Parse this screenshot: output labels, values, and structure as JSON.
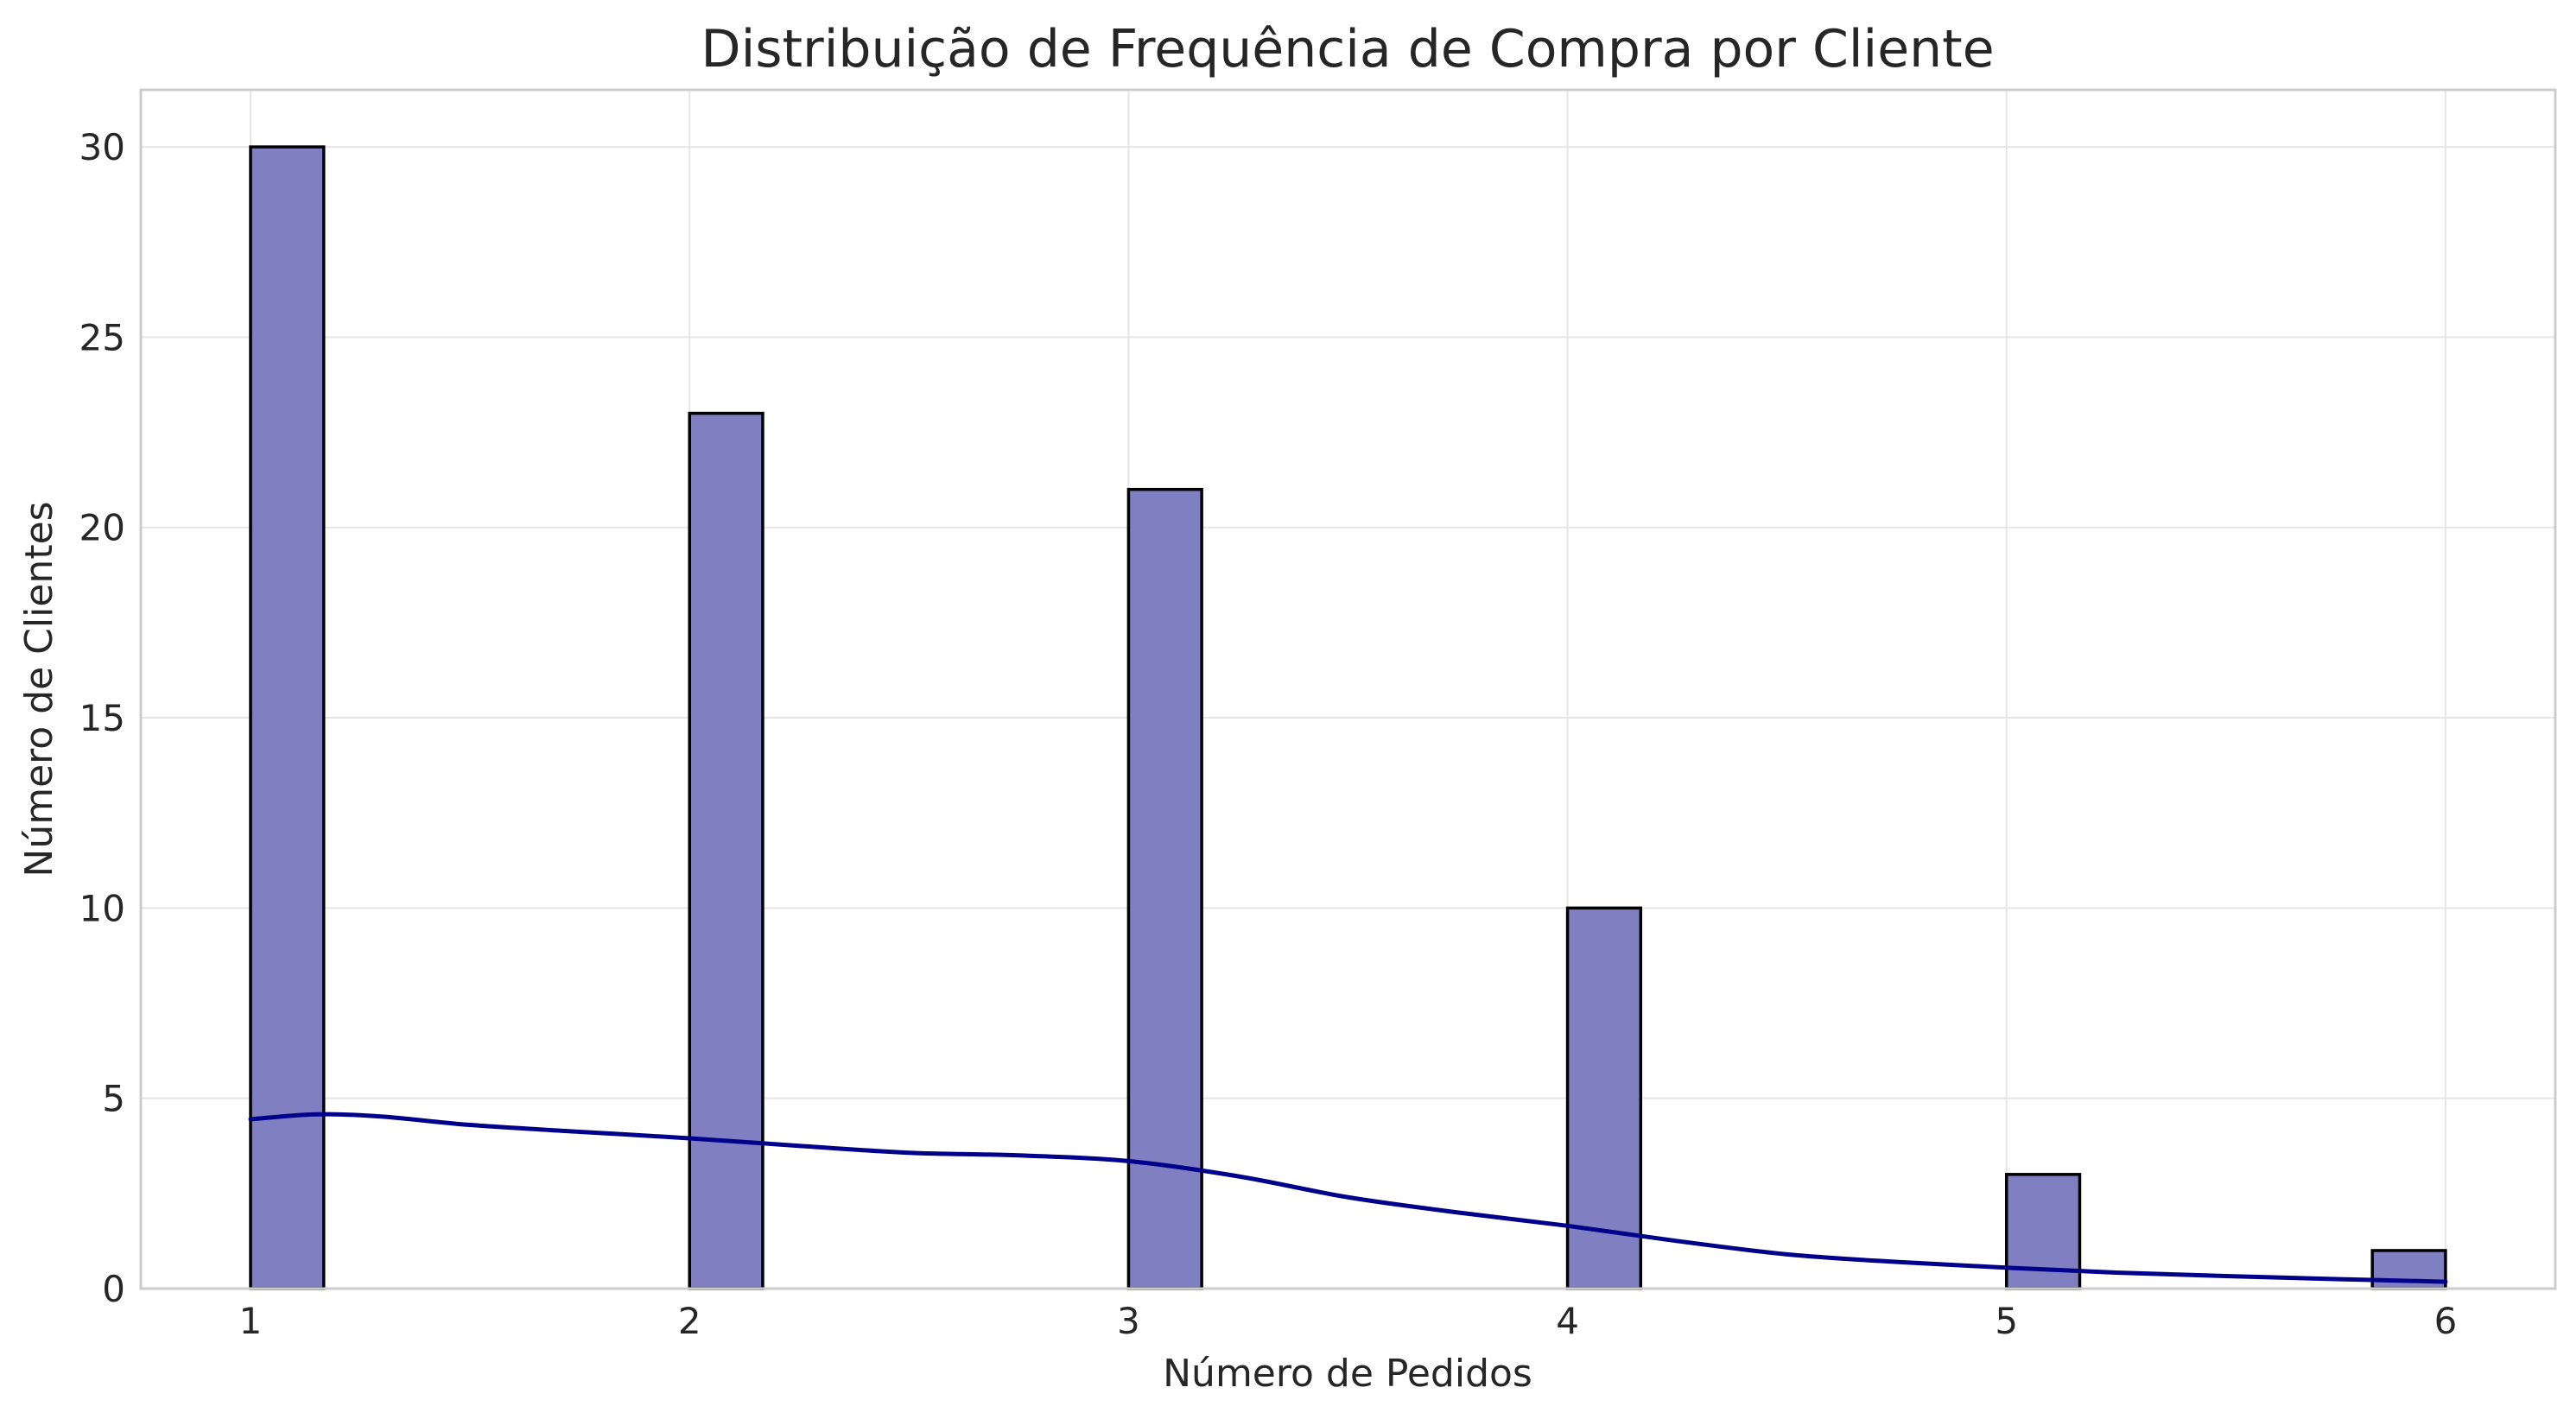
{
  "chart_data": {
    "type": "bar",
    "title": "Distribuição de Frequência de Compra por Cliente",
    "xlabel": "Número de Pedidos",
    "ylabel": "Número de Clientes",
    "x": [
      1,
      2,
      3,
      4,
      5,
      6
    ],
    "x_ticks": [
      "1",
      "2",
      "3",
      "4",
      "5",
      "6"
    ],
    "xlim": [
      0.75,
      6.25
    ],
    "values": [
      30,
      23,
      21,
      10,
      3,
      1
    ],
    "bins": [
      {
        "start": 1.0,
        "end": 1.1667,
        "count": 30
      },
      {
        "start": 2.0,
        "end": 2.1667,
        "count": 23
      },
      {
        "start": 3.0,
        "end": 3.1667,
        "count": 21
      },
      {
        "start": 4.0,
        "end": 4.1667,
        "count": 10
      },
      {
        "start": 5.0,
        "end": 5.1667,
        "count": 3
      },
      {
        "start": 5.8333,
        "end": 6.0,
        "count": 1
      }
    ],
    "ylim": [
      0,
      31.5
    ],
    "y_ticks": [
      "0",
      "5",
      "10",
      "15",
      "20",
      "25",
      "30"
    ],
    "kde": {
      "x": [
        1.0,
        1.15,
        1.3,
        1.5,
        1.75,
        2.0,
        2.25,
        2.5,
        2.75,
        3.0,
        3.25,
        3.5,
        3.75,
        4.0,
        4.25,
        4.5,
        4.75,
        5.0,
        5.25,
        5.5,
        5.75,
        6.0
      ],
      "y": [
        4.45,
        4.58,
        4.52,
        4.3,
        4.12,
        3.95,
        3.75,
        3.57,
        3.5,
        3.35,
        2.95,
        2.4,
        2.0,
        1.65,
        1.25,
        0.9,
        0.7,
        0.55,
        0.42,
        0.33,
        0.25,
        0.18
      ]
    },
    "bar_color": "#7f7fc2",
    "kde_color": "#00008b",
    "grid": true,
    "legend": "none"
  }
}
